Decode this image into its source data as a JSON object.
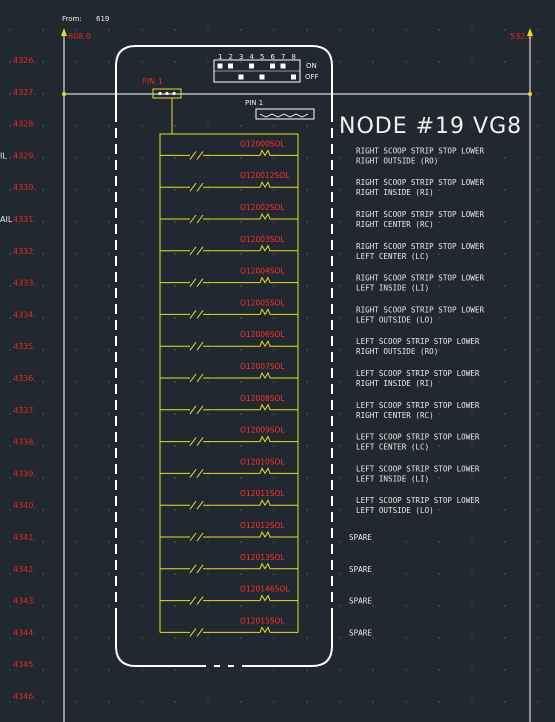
{
  "header": {
    "from_label": "From:",
    "from_value": "619",
    "left_ref": "608.0",
    "right_ref": "532.0"
  },
  "node_title": "NODE #19  VG8",
  "connector": {
    "pin_label_1": "PIN 1",
    "pin_label_2": "PIN 1",
    "dip_numbers": [
      "1",
      "2",
      "3",
      "4",
      "5",
      "6",
      "7",
      "8"
    ],
    "dip_on": "ON",
    "dip_off": "OFF"
  },
  "edge_labels": [
    {
      "rung_index": 3,
      "text": "IL"
    },
    {
      "rung_index": 5,
      "text": "AIL"
    }
  ],
  "rungs": [
    {
      "num": "4326.",
      "sol": "",
      "desc": []
    },
    {
      "num": "4327.",
      "sol": "",
      "desc": []
    },
    {
      "num": "4328.",
      "sol": "",
      "desc": []
    },
    {
      "num": "4329.",
      "sol": "O12000SOL",
      "desc": [
        "RIGHT SCOOP STRIP STOP LOWER",
        "RIGHT OUTSIDE (RO)"
      ]
    },
    {
      "num": "4330.",
      "sol": "O120012SOL",
      "desc": [
        "RIGHT SCOOP STRIP STOP LOWER",
        "RIGHT INSIDE (RI)"
      ]
    },
    {
      "num": "4331.",
      "sol": "O12002SOL",
      "desc": [
        "RIGHT SCOOP STRIP STOP LOWER",
        "RIGHT CENTER (RC)"
      ]
    },
    {
      "num": "4332.",
      "sol": "O12003SOL",
      "desc": [
        "RIGHT SCOOP STRIP STOP LOWER",
        "LEFT CENTER (LC)"
      ]
    },
    {
      "num": "4333.",
      "sol": "O12004SOL",
      "desc": [
        "RIGHT SCOOP STRIP STOP LOWER",
        "LEFT INSIDE (LI)"
      ]
    },
    {
      "num": "4334.",
      "sol": "O12005SOL",
      "desc": [
        "RIGHT SCOOP STRIP STOP LOWER",
        "LEFT OUTSIDE (LO)"
      ]
    },
    {
      "num": "4335.",
      "sol": "O12006SOL",
      "desc": [
        "LEFT SCOOP STRIP STOP LOWER",
        "RIGHT OUTSIDE (RO)"
      ]
    },
    {
      "num": "4336.",
      "sol": "O12007SOL",
      "desc": [
        "LEFT SCOOP STRIP STOP LOWER",
        "RIGHT INSIDE  (RI)"
      ]
    },
    {
      "num": "4337.",
      "sol": "O12008SOL",
      "desc": [
        "LEFT SCOOP STRIP STOP LOWER",
        "RIGHT CENTER (RC)"
      ]
    },
    {
      "num": "4338.",
      "sol": "O12009SOL",
      "desc": [
        "LEFT SCOOP STRIP STOP LOWER",
        "LEFT CENTER (LC)"
      ]
    },
    {
      "num": "4339.",
      "sol": "O12010SOL",
      "desc": [
        "LEFT SCOOP STRIP STOP LOWER",
        "LEFT INSIDE (LI)"
      ]
    },
    {
      "num": "4340.",
      "sol": "O12011SOL",
      "desc": [
        "LEFT SCOOP STRIP STOP LOWER",
        "LEFT OUTSIDE (LO)"
      ]
    },
    {
      "num": "4341.",
      "sol": "O12012SOL",
      "desc": [
        "SPARE"
      ]
    },
    {
      "num": "4342.",
      "sol": "O12013SOL",
      "desc": [
        "SPARE"
      ]
    },
    {
      "num": "4343.",
      "sol": "O120146SOL",
      "desc": [
        "SPARE"
      ]
    },
    {
      "num": "4344.",
      "sol": "O12015SOL",
      "desc": [
        "SPARE"
      ]
    },
    {
      "num": "4345.",
      "sol": "",
      "desc": []
    },
    {
      "num": "4346.",
      "sol": "",
      "desc": []
    }
  ],
  "colors": {
    "background": "#212830",
    "rung_numbers": "#e02828",
    "ladder_wire": "#e6dc28",
    "text": "#e8e8e8"
  }
}
